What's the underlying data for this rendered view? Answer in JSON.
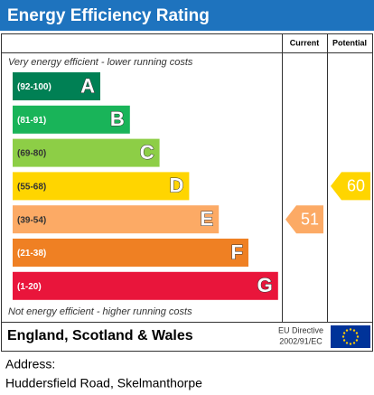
{
  "title": "Energy Efficiency Rating",
  "columns": [
    "Current",
    "Potential"
  ],
  "top_note": "Very energy efficient - lower running costs",
  "bands": [
    {
      "range": "(92-100)",
      "letter": "A",
      "color": "#008054"
    },
    {
      "range": "(81-91)",
      "letter": "B",
      "color": "#19b459"
    },
    {
      "range": "(69-80)",
      "letter": "C",
      "color": "#8dce46"
    },
    {
      "range": "(55-68)",
      "letter": "D",
      "color": "#ffd500"
    },
    {
      "range": "(39-54)",
      "letter": "E",
      "color": "#fcaa65"
    },
    {
      "range": "(21-38)",
      "letter": "F",
      "color": "#ef8023"
    },
    {
      "range": "(1-20)",
      "letter": "G",
      "color": "#e9153b"
    }
  ],
  "bottom_note": "Not energy efficient - higher running costs",
  "current": 51,
  "potential": 60,
  "footer": {
    "region": "England, Scotland & Wales",
    "directive": [
      "EU Directive",
      "2002/91/EC"
    ]
  },
  "address": {
    "label": "Address:",
    "line": "Huddersfield Road, Skelmanthorpe"
  }
}
